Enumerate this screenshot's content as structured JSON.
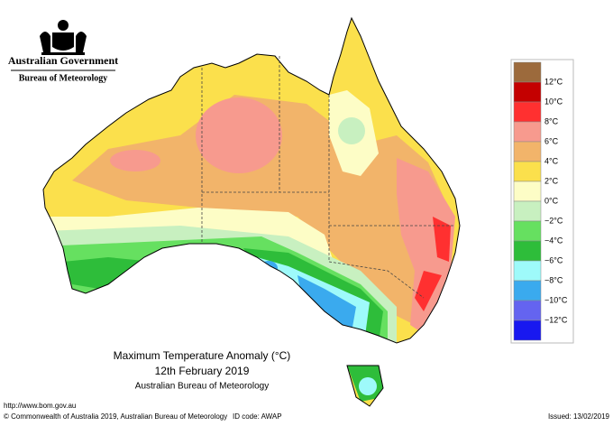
{
  "header": {
    "government": "Australian Government",
    "bureau": "Bureau of Meteorology"
  },
  "map": {
    "title": "Maximum Temperature Anomaly (°C)",
    "date": "12th February 2019",
    "source": "Australian Bureau of Meteorology"
  },
  "legend": [
    {
      "label": null,
      "color": "#9c6a3c"
    },
    {
      "label": "12°C",
      "color": "#c40000"
    },
    {
      "label": "10°C",
      "color": "#ff3030"
    },
    {
      "label": "8°C",
      "color": "#f79a8e"
    },
    {
      "label": "6°C",
      "color": "#f2b46a"
    },
    {
      "label": "4°C",
      "color": "#fbe04c"
    },
    {
      "label": "2°C",
      "color": "#fdfdc6"
    },
    {
      "label": "0°C",
      "color": "#c8f0c0"
    },
    {
      "label": "−2°C",
      "color": "#66e060"
    },
    {
      "label": "−4°C",
      "color": "#2ebd3a"
    },
    {
      "label": "−6°C",
      "color": "#9efafa"
    },
    {
      "label": "−8°C",
      "color": "#3aaaee"
    },
    {
      "label": "−10°C",
      "color": "#6464f0"
    },
    {
      "label": "−12°C",
      "color": "#1818f0"
    }
  ],
  "footer": {
    "url": "http://www.bom.gov.au",
    "copyright": "© Commonwealth of Australia 2019, Australian Bureau of Meteorology",
    "id": "ID code: AWAP",
    "issued": "Issued: 13/02/2019"
  }
}
